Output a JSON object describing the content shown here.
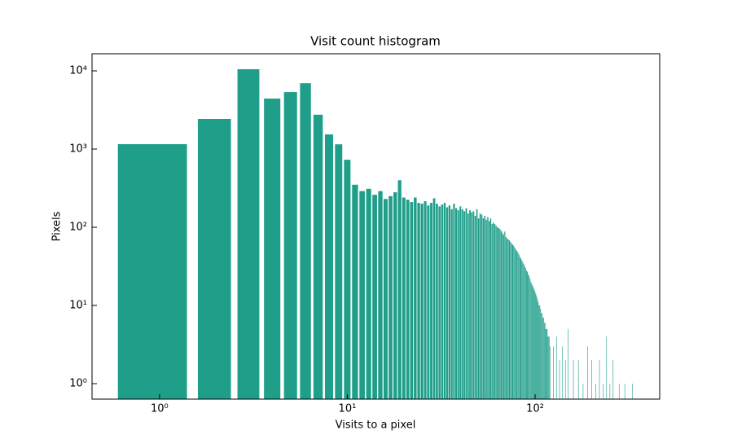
{
  "chart_data": {
    "type": "bar",
    "title": "Visit count histogram",
    "xlabel": "Visits to a pixel",
    "ylabel": "Pixels",
    "xscale": "log",
    "yscale": "log",
    "color": "#1f9e89",
    "xlim": [
      0.437,
      461
    ],
    "ylim": [
      0.634,
      16550
    ],
    "xticks": [
      {
        "value": 1,
        "label": "10⁰"
      },
      {
        "value": 10,
        "label": "10¹"
      },
      {
        "value": 100,
        "label": "10²"
      }
    ],
    "yticks": [
      {
        "value": 1,
        "label": "10⁰"
      },
      {
        "value": 10,
        "label": "10¹"
      },
      {
        "value": 100,
        "label": "10²"
      },
      {
        "value": 1000,
        "label": "10³"
      },
      {
        "value": 10000,
        "label": "10⁴"
      }
    ],
    "x": [
      1,
      2,
      3,
      4,
      5,
      6,
      7,
      8,
      9,
      10,
      11,
      12,
      13,
      14,
      15,
      16,
      17,
      18,
      19,
      20,
      21,
      22,
      23,
      24,
      25,
      26,
      27,
      28,
      29,
      30,
      31,
      32,
      33,
      34,
      35,
      36,
      37,
      38,
      39,
      40,
      41,
      42,
      43,
      44,
      45,
      46,
      47,
      48,
      49,
      50,
      51,
      52,
      53,
      54,
      55,
      56,
      57,
      58,
      59,
      60,
      61,
      62,
      63,
      64,
      65,
      66,
      67,
      68,
      69,
      70,
      71,
      72,
      73,
      74,
      75,
      76,
      77,
      78,
      79,
      80,
      81,
      82,
      83,
      84,
      85,
      86,
      87,
      88,
      89,
      90,
      91,
      92,
      93,
      94,
      95,
      96,
      97,
      98,
      99,
      100,
      101,
      102,
      103,
      104,
      105,
      106,
      107,
      108,
      109,
      110,
      111,
      112,
      113,
      114,
      115,
      116,
      117,
      118,
      119,
      120,
      125,
      130,
      135,
      140,
      145,
      150,
      160,
      170,
      180,
      190,
      200,
      210,
      220,
      230,
      240,
      250,
      260,
      280,
      300,
      330
    ],
    "values": [
      1155,
      2430,
      10500,
      4420,
      5350,
      6950,
      2750,
      1540,
      1150,
      730,
      350,
      290,
      310,
      260,
      290,
      230,
      250,
      280,
      400,
      240,
      225,
      210,
      240,
      205,
      200,
      215,
      190,
      205,
      235,
      200,
      185,
      195,
      205,
      180,
      190,
      170,
      200,
      175,
      165,
      185,
      170,
      160,
      175,
      150,
      165,
      155,
      160,
      140,
      170,
      130,
      150,
      145,
      130,
      140,
      125,
      135,
      120,
      130,
      110,
      115,
      110,
      105,
      100,
      98,
      95,
      90,
      85,
      80,
      88,
      75,
      72,
      70,
      68,
      65,
      62,
      60,
      58,
      55,
      52,
      50,
      48,
      45,
      42,
      40,
      38,
      36,
      34,
      32,
      30,
      28,
      27,
      25,
      24,
      22,
      20,
      19,
      18,
      17,
      16,
      15,
      14,
      13,
      12,
      11,
      10,
      10,
      9,
      8,
      8,
      7,
      7,
      6,
      6,
      5,
      5,
      5,
      4,
      4,
      4,
      3,
      3,
      4,
      2,
      3,
      2,
      5,
      2,
      2,
      1,
      3,
      2,
      1,
      2,
      1,
      4,
      1,
      2,
      1,
      1,
      1
    ]
  }
}
